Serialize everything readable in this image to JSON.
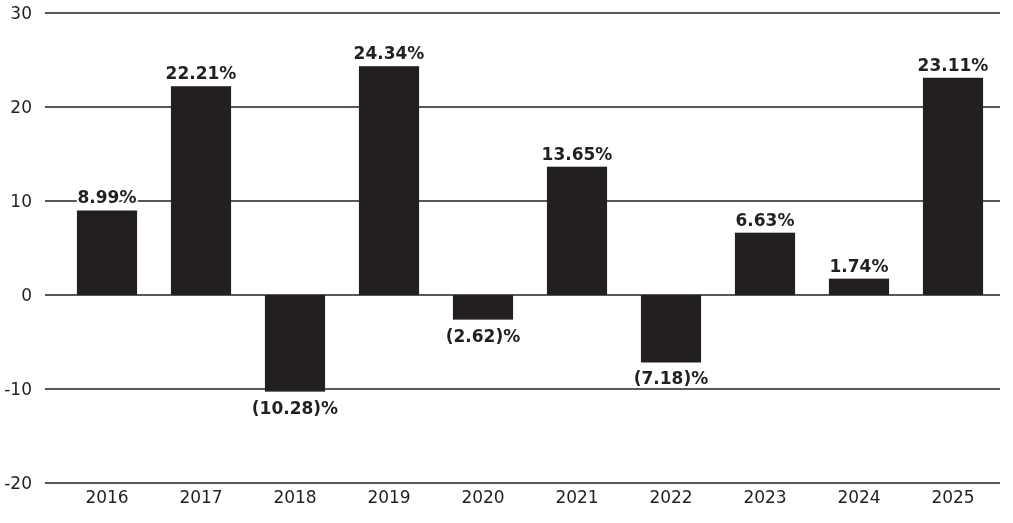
{
  "chart_data": {
    "type": "bar",
    "categories": [
      "2016",
      "2017",
      "2018",
      "2019",
      "2020",
      "2021",
      "2022",
      "2023",
      "2024",
      "2025"
    ],
    "values": [
      8.99,
      22.21,
      -10.28,
      24.34,
      -2.62,
      13.65,
      -7.18,
      6.63,
      1.74,
      23.11
    ],
    "color": "#231f20",
    "value_labels": [
      "8.99%",
      "22.21%",
      "(10.28)%",
      "24.34%",
      "(2.62)%",
      "13.65%",
      "(7.18)%",
      "6.63%",
      "1.74%",
      "23.11%"
    ],
    "ylim": [
      -20,
      30
    ],
    "yticks": [
      -20,
      -10,
      0,
      10,
      20,
      30
    ],
    "grid": "y"
  }
}
